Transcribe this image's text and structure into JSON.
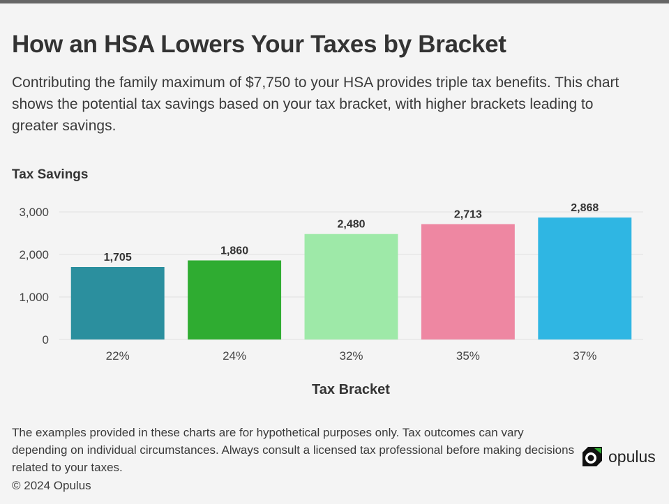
{
  "header": {
    "title": "How an HSA Lowers Your Taxes by Bracket",
    "subtitle": "Contributing the family maximum of $7,750 to your HSA provides triple tax benefits. This chart shows the potential tax savings based on your tax bracket, with higher brackets leading to greater savings."
  },
  "chart_data": {
    "type": "bar",
    "title": "How an HSA Lowers Your Taxes by Bracket",
    "ylabel": "Tax Savings",
    "xlabel": "Tax Bracket",
    "categories": [
      "22%",
      "24%",
      "32%",
      "35%",
      "37%"
    ],
    "values": [
      1705,
      1860,
      2480,
      2713,
      2868
    ],
    "value_labels": [
      "1,705",
      "1,860",
      "2,480",
      "2,713",
      "2,868"
    ],
    "colors": [
      "#2b8f9e",
      "#2fac31",
      "#9ee9a8",
      "#ee87a2",
      "#2fb6e3"
    ],
    "yticks": [
      0,
      1000,
      2000,
      3000
    ],
    "ytick_labels": [
      "0",
      "1,000",
      "2,000",
      "3,000"
    ],
    "ylim": [
      0,
      3000
    ],
    "grid": true
  },
  "footer": {
    "disclaimer": "The examples provided in these charts are for hypothetical purposes only. Tax outcomes can vary depending on individual circumstances. Always consult a licensed tax professional before making decisions related to your taxes.",
    "copyright": "© 2024 Opulus",
    "brand_name": "opulus"
  }
}
